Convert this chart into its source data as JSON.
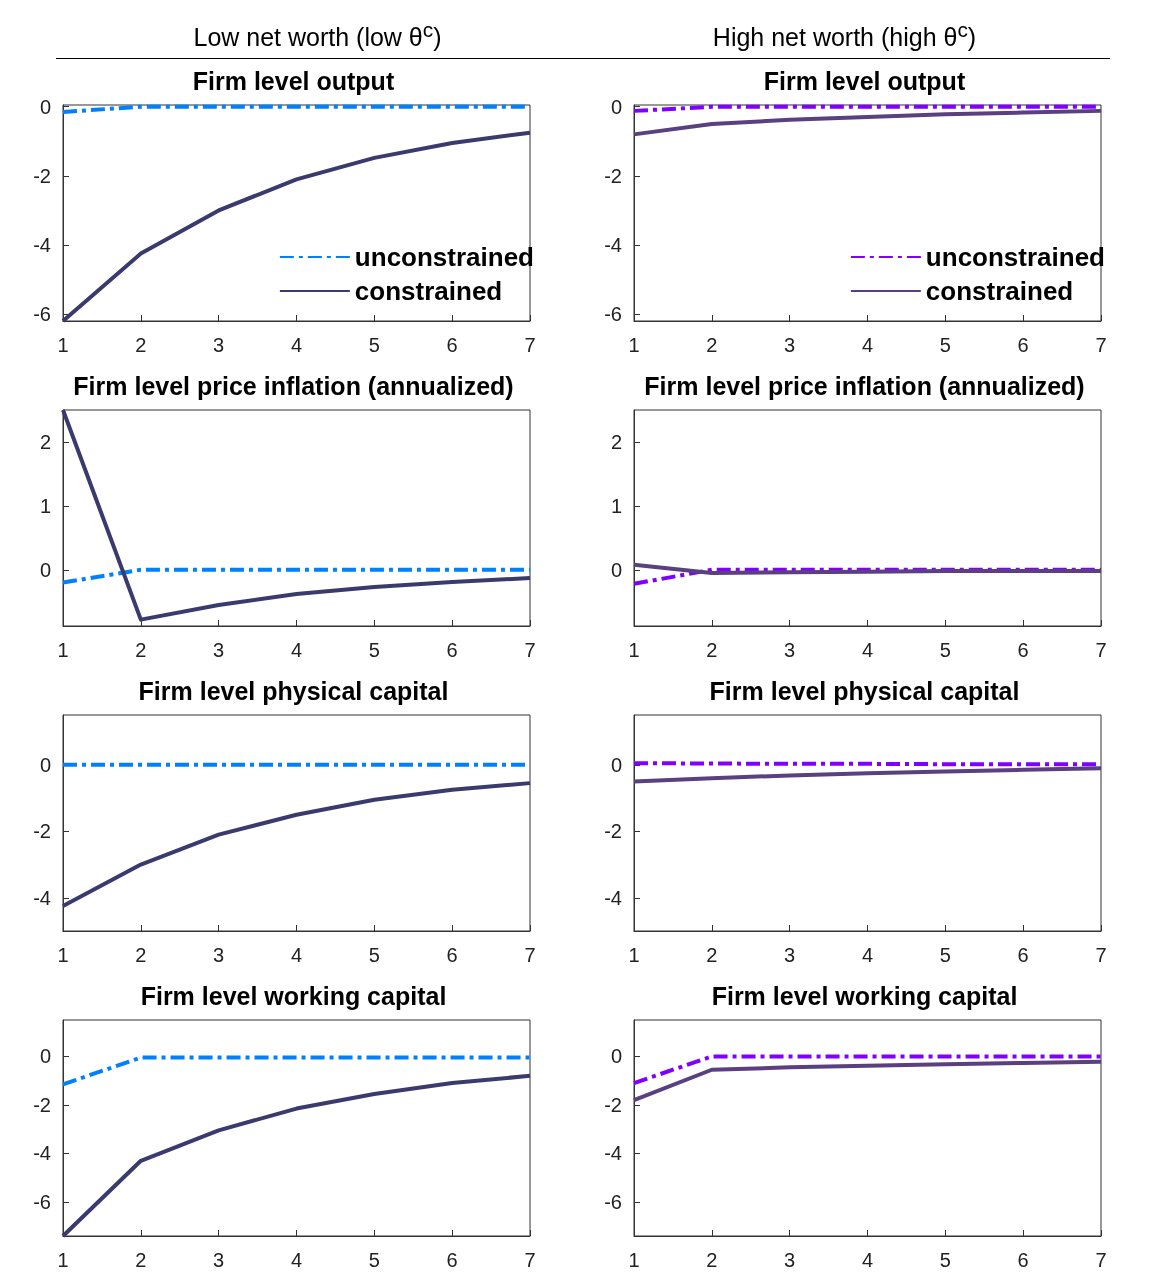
{
  "chart_data": [
    {
      "type": "line",
      "subtitle": "Low net worth (low θ$^{c}$)",
      "title": "Firm level output",
      "x": [
        1,
        2,
        3,
        4,
        5,
        6,
        7
      ],
      "xlim": [
        1,
        7
      ],
      "xticks": [
        1,
        2,
        3,
        4,
        5,
        6,
        7
      ],
      "ylim": [
        -6.2,
        0.05
      ],
      "yticks": [
        -6,
        -4,
        -2,
        0
      ],
      "grid": false,
      "legend": "bottom right",
      "series": [
        {
          "name": "unconstrained",
          "color": "#0080ff",
          "line_style": "dashed",
          "values": [
            -0.15,
            0,
            0,
            0,
            0,
            0,
            0
          ]
        },
        {
          "name": "constrained",
          "color": "#3a3a6e",
          "line_style": "solid",
          "values": [
            -6.2,
            -4.25,
            -3.0,
            -2.1,
            -1.48,
            -1.05,
            -0.75
          ]
        }
      ]
    },
    {
      "type": "line",
      "subtitle": "High net worth (high θ$^{c}$)",
      "title": "Firm level output",
      "x": [
        1,
        2,
        3,
        4,
        5,
        6,
        7
      ],
      "xlim": [
        1,
        7
      ],
      "xticks": [
        1,
        2,
        3,
        4,
        5,
        6,
        7
      ],
      "ylim": [
        -6.2,
        0.05
      ],
      "yticks": [
        -6,
        -4,
        -2,
        0
      ],
      "grid": false,
      "legend": "bottom right",
      "series": [
        {
          "name": "unconstrained",
          "color": "#8000ff",
          "line_style": "dashed",
          "values": [
            -0.12,
            0,
            0,
            0,
            0,
            0,
            0
          ]
        },
        {
          "name": "constrained",
          "color": "#5a4080",
          "line_style": "solid",
          "values": [
            -0.8,
            -0.5,
            -0.38,
            -0.3,
            -0.22,
            -0.17,
            -0.12
          ]
        }
      ]
    },
    {
      "type": "line",
      "title": "Firm level price inflation (annualized)",
      "x": [
        1,
        2,
        3,
        4,
        5,
        6,
        7
      ],
      "xlim": [
        1,
        7
      ],
      "xticks": [
        1,
        2,
        3,
        4,
        5,
        6,
        7
      ],
      "ylim": [
        -0.88,
        2.5
      ],
      "yticks": [
        0,
        1,
        2
      ],
      "grid": false,
      "series": [
        {
          "color": "#0080ff",
          "line_style": "dashed",
          "values": [
            -0.2,
            0,
            0,
            0,
            0,
            0,
            0
          ]
        },
        {
          "color": "#3a3a6e",
          "line_style": "solid",
          "values": [
            2.5,
            -0.78,
            -0.55,
            -0.38,
            -0.27,
            -0.19,
            -0.13
          ]
        }
      ]
    },
    {
      "type": "line",
      "title": "Firm level price inflation (annualized)",
      "x": [
        1,
        2,
        3,
        4,
        5,
        6,
        7
      ],
      "xlim": [
        1,
        7
      ],
      "xticks": [
        1,
        2,
        3,
        4,
        5,
        6,
        7
      ],
      "ylim": [
        -0.88,
        2.5
      ],
      "yticks": [
        0,
        1,
        2
      ],
      "grid": false,
      "series": [
        {
          "color": "#8000ff",
          "line_style": "dashed",
          "values": [
            -0.22,
            0,
            0,
            0,
            0,
            0,
            0
          ]
        },
        {
          "color": "#5a4080",
          "line_style": "solid",
          "values": [
            0.08,
            -0.05,
            -0.04,
            -0.03,
            -0.02,
            -0.02,
            -0.02
          ]
        }
      ]
    },
    {
      "type": "line",
      "title": "Firm level physical capital",
      "x": [
        1,
        2,
        3,
        4,
        5,
        6,
        7
      ],
      "xlim": [
        1,
        7
      ],
      "xticks": [
        1,
        2,
        3,
        4,
        5,
        6,
        7
      ],
      "ylim": [
        -5,
        1.5
      ],
      "yticks": [
        -4,
        -2,
        0
      ],
      "grid": false,
      "series": [
        {
          "color": "#0080ff",
          "line_style": "dashed",
          "values": [
            0,
            0,
            0,
            0,
            0,
            0,
            0
          ]
        },
        {
          "color": "#3a3a6e",
          "line_style": "solid",
          "values": [
            -4.25,
            -3.0,
            -2.1,
            -1.5,
            -1.05,
            -0.75,
            -0.55
          ]
        }
      ]
    },
    {
      "type": "line",
      "title": "Firm level physical capital",
      "x": [
        1,
        2,
        3,
        4,
        5,
        6,
        7
      ],
      "xlim": [
        1,
        7
      ],
      "xticks": [
        1,
        2,
        3,
        4,
        5,
        6,
        7
      ],
      "ylim": [
        -5,
        1.5
      ],
      "yticks": [
        -4,
        -2,
        0
      ],
      "grid": false,
      "series": [
        {
          "color": "#8000ff",
          "line_style": "dashed",
          "values": [
            0.05,
            0.04,
            0.03,
            0.03,
            0.02,
            0.02,
            0.02
          ]
        },
        {
          "color": "#5a4080",
          "line_style": "solid",
          "values": [
            -0.5,
            -0.4,
            -0.32,
            -0.25,
            -0.2,
            -0.15,
            -0.1
          ]
        }
      ]
    },
    {
      "type": "line",
      "title": "Firm level working capital",
      "x": [
        1,
        2,
        3,
        4,
        5,
        6,
        7
      ],
      "xlim": [
        1,
        7
      ],
      "xticks": [
        1,
        2,
        3,
        4,
        5,
        6,
        7
      ],
      "ylim": [
        -7.4,
        1.5
      ],
      "yticks": [
        -6,
        -4,
        -2,
        0
      ],
      "grid": false,
      "series": [
        {
          "color": "#0080ff",
          "line_style": "dashed",
          "values": [
            -1.15,
            -0.05,
            -0.05,
            -0.05,
            -0.05,
            -0.05,
            -0.05
          ]
        },
        {
          "color": "#3a3a6e",
          "line_style": "solid",
          "values": [
            -7.4,
            -4.3,
            -3.05,
            -2.15,
            -1.55,
            -1.1,
            -0.8
          ]
        }
      ]
    },
    {
      "type": "line",
      "title": "Firm level working capital",
      "x": [
        1,
        2,
        3,
        4,
        5,
        6,
        7
      ],
      "xlim": [
        1,
        7
      ],
      "xticks": [
        1,
        2,
        3,
        4,
        5,
        6,
        7
      ],
      "ylim": [
        -7.4,
        1.5
      ],
      "yticks": [
        -6,
        -4,
        -2,
        0
      ],
      "grid": false,
      "series": [
        {
          "color": "#8000ff",
          "line_style": "dashed",
          "values": [
            -1.1,
            0,
            0,
            0,
            0,
            0,
            0
          ]
        },
        {
          "color": "#5a4080",
          "line_style": "solid",
          "values": [
            -1.8,
            -0.55,
            -0.45,
            -0.38,
            -0.32,
            -0.27,
            -0.22
          ]
        }
      ]
    }
  ]
}
